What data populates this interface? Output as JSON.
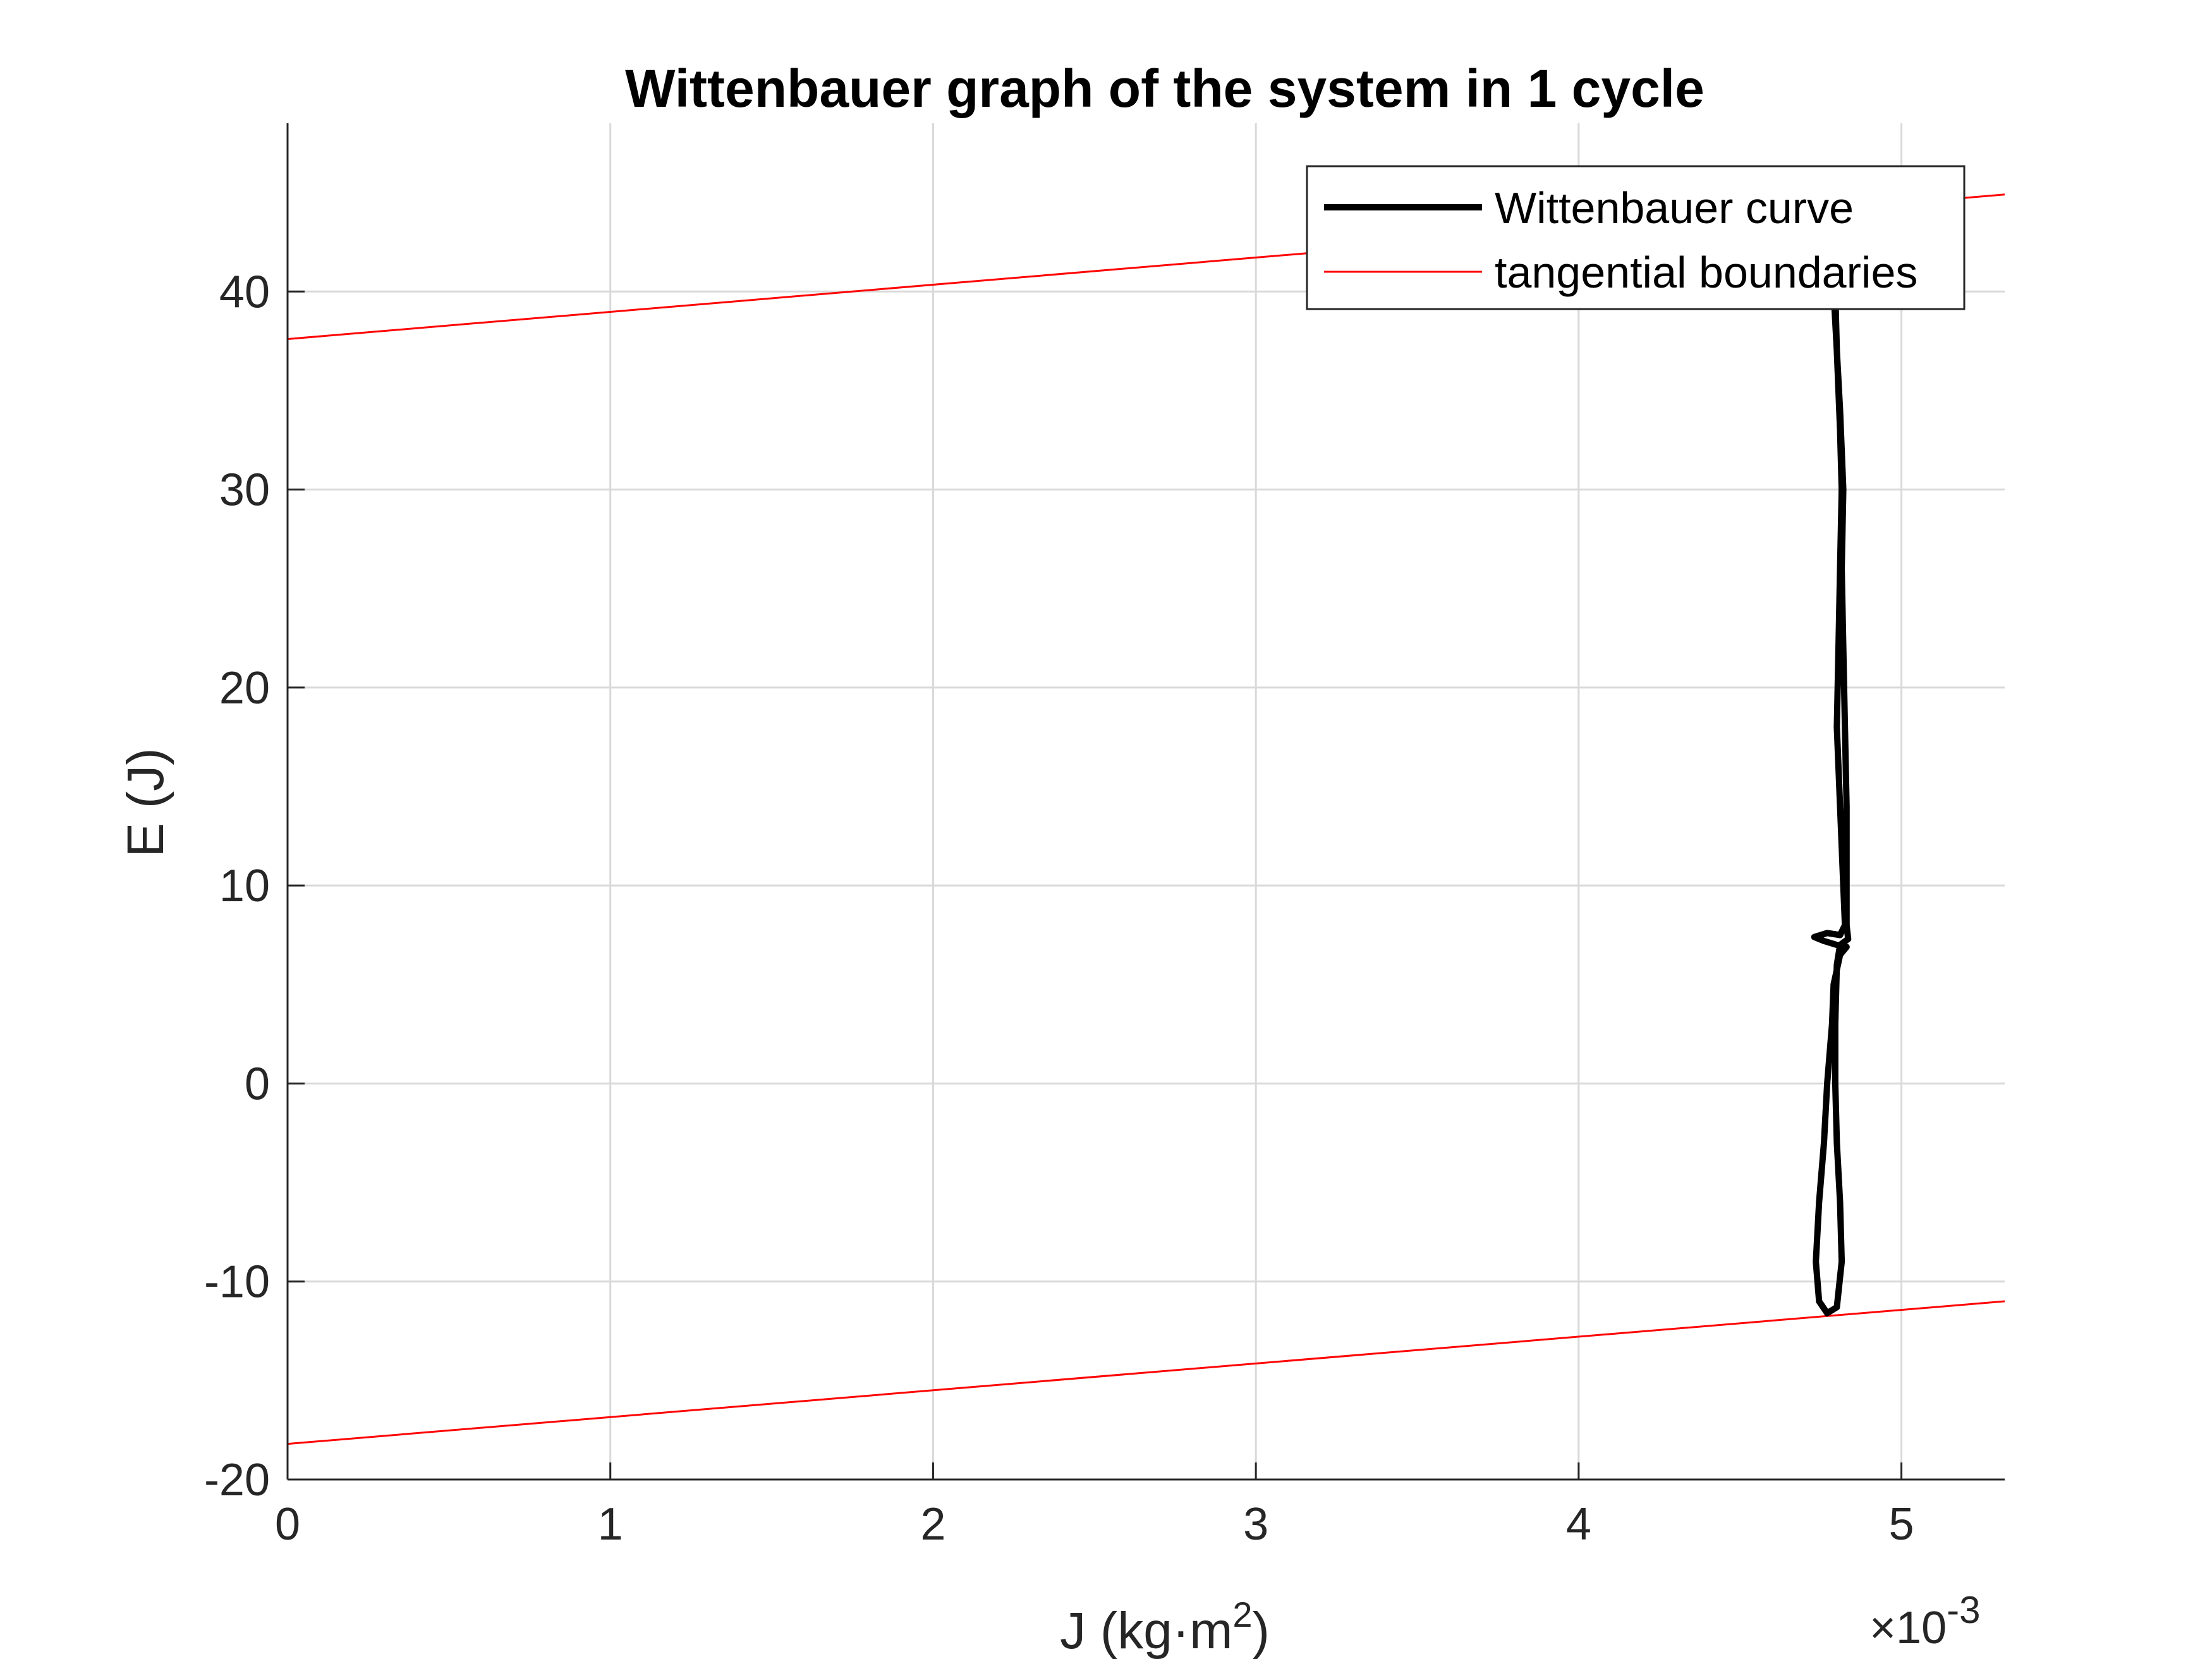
{
  "chart_data": {
    "type": "line",
    "title": "Wittenbauer graph of the system in 1 cycle",
    "xlabel": "J (kg·m",
    "xlabel_sup": "2",
    "xlabel_end": ")",
    "ylabel": "E (J)",
    "x_exponent_label": "×10",
    "x_exponent_power": "-3",
    "xlim": [
      0,
      5.32
    ],
    "ylim": [
      -20,
      48.5
    ],
    "x_ticks": [
      0,
      1,
      2,
      3,
      4,
      5
    ],
    "x_tick_labels": [
      "0",
      "1",
      "2",
      "3",
      "4",
      "5"
    ],
    "y_ticks": [
      -20,
      -10,
      0,
      10,
      20,
      30,
      40
    ],
    "y_tick_labels": [
      "-20",
      "-10",
      "0",
      "10",
      "20",
      "30",
      "40"
    ],
    "grid": true,
    "legend_position": "top-right",
    "colors": {
      "curve": "#000000",
      "boundary": "#ff0000",
      "grid": "#d9d9d9",
      "axis": "#262626"
    },
    "series": [
      {
        "name": "Wittenbauer curve",
        "style": "thick-black",
        "points": [
          [
            4.79,
            40.0
          ],
          [
            4.8,
            37.0
          ],
          [
            4.81,
            33.0
          ],
          [
            4.815,
            30.0
          ],
          [
            4.81,
            26.0
          ],
          [
            4.805,
            22.0
          ],
          [
            4.8,
            18.0
          ],
          [
            4.81,
            14.0
          ],
          [
            4.82,
            10.0
          ],
          [
            4.825,
            8.0
          ],
          [
            4.81,
            7.5
          ],
          [
            4.77,
            7.6
          ],
          [
            4.73,
            7.4
          ],
          [
            4.76,
            7.2
          ],
          [
            4.8,
            7.0
          ],
          [
            4.83,
            6.9
          ],
          [
            4.81,
            6.5
          ],
          [
            4.79,
            5.0
          ],
          [
            4.785,
            3.0
          ],
          [
            4.77,
            0.0
          ],
          [
            4.76,
            -3.0
          ],
          [
            4.745,
            -6.0
          ],
          [
            4.735,
            -9.0
          ],
          [
            4.745,
            -11.0
          ],
          [
            4.77,
            -11.6
          ],
          [
            4.8,
            -11.3
          ],
          [
            4.815,
            -9.0
          ],
          [
            4.81,
            -6.0
          ],
          [
            4.8,
            -3.0
          ],
          [
            4.795,
            0.0
          ],
          [
            4.795,
            3.0
          ],
          [
            4.8,
            6.0
          ],
          [
            4.81,
            7.0
          ],
          [
            4.835,
            7.3
          ],
          [
            4.83,
            8.0
          ],
          [
            4.83,
            10.0
          ],
          [
            4.83,
            14.0
          ],
          [
            4.825,
            18.0
          ],
          [
            4.82,
            22.0
          ],
          [
            4.815,
            26.0
          ],
          [
            4.82,
            30.0
          ],
          [
            4.81,
            34.0
          ],
          [
            4.8,
            37.0
          ],
          [
            4.795,
            40.0
          ]
        ]
      },
      {
        "name": "tangential boundaries",
        "style": "thin-red",
        "lines": [
          {
            "x": [
              0,
              5.32
            ],
            "y": [
              37.6,
              44.9
            ]
          },
          {
            "x": [
              0,
              5.32
            ],
            "y": [
              -18.2,
              -11.0
            ]
          }
        ]
      }
    ]
  }
}
